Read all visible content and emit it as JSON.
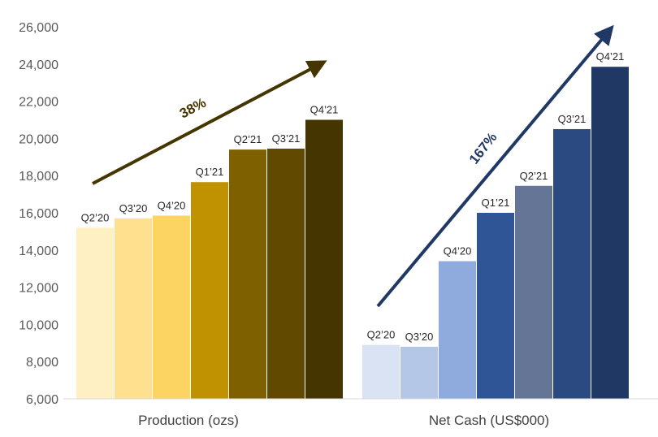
{
  "chart_data": {
    "type": "bar",
    "ylim": [
      6000,
      26000
    ],
    "yticks": [
      6000,
      8000,
      10000,
      12000,
      14000,
      16000,
      18000,
      20000,
      22000,
      24000,
      26000
    ],
    "ytick_labels": [
      "6,000",
      "8,000",
      "10,000",
      "12,000",
      "14,000",
      "16,000",
      "18,000",
      "20,000",
      "22,000",
      "24,000",
      "26,000"
    ],
    "grid": false,
    "groups": [
      {
        "label": "Production (ozs)",
        "categories": [
          "Q2’20",
          "Q3’20",
          "Q4’20",
          "Q1’21",
          "Q2’21",
          "Q3’21",
          "Q4’21"
        ],
        "values": [
          15200,
          15700,
          15850,
          17650,
          19400,
          19450,
          21000
        ],
        "colors": [
          "#FFF0C4",
          "#FEE08E",
          "#FCD462",
          "#C09100",
          "#7F6000",
          "#614A00",
          "#453500"
        ],
        "growth": {
          "label": "38%",
          "color": "#453500"
        }
      },
      {
        "label": "Net Cash (US$000)",
        "categories": [
          "Q2’20",
          "Q3’20",
          "Q4’20",
          "Q1’21",
          "Q2’21",
          "Q3’21",
          "Q4’21"
        ],
        "values": [
          8900,
          8800,
          13400,
          16000,
          17450,
          20500,
          23850
        ],
        "colors": [
          "#DAE3F3",
          "#B4C7E7",
          "#8FAADC",
          "#2F5597",
          "#647595",
          "#2C4A82",
          "#203864"
        ],
        "growth": {
          "label": "167%",
          "color": "#203864"
        }
      }
    ]
  }
}
